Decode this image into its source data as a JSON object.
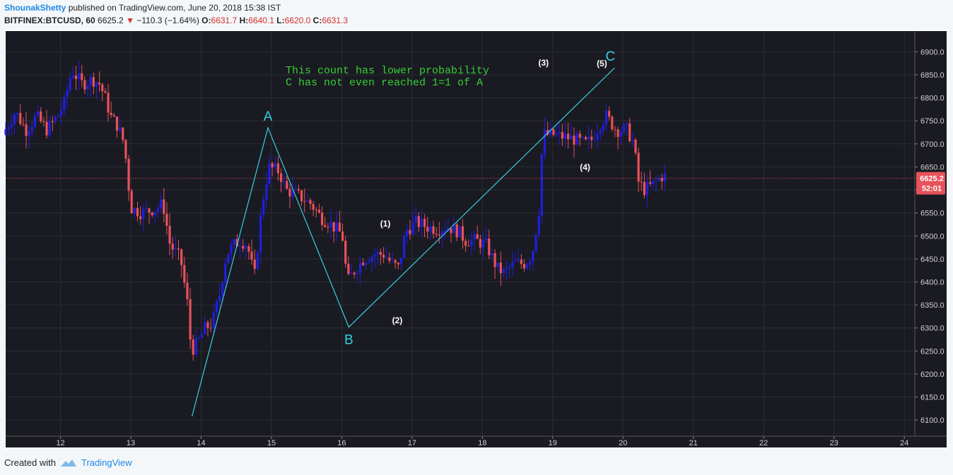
{
  "header": {
    "author": "ShounakShetty",
    "published": " published on TradingView.com, June 20, 2018 15:38 IST",
    "symbol": "BITFINEX:BTCUSD, 60",
    "last": "6625.2",
    "change": "−110.3 (−1.64%)",
    "o_label": "O:",
    "o_val": "6631.7",
    "h_label": "H:",
    "h_val": "6640.1",
    "l_label": "L:",
    "l_val": "6620.0",
    "c_label": "C:",
    "c_val": "6631.3"
  },
  "footer": {
    "created_with": "Created with",
    "brand": "TradingView"
  },
  "colors": {
    "bg": "#1a1a22",
    "grid": "#2c2c36",
    "up": "#1f1fe0",
    "down": "#e8525a",
    "wave": "#35d0e0",
    "note": "#35d035",
    "price_tag": "#e8525a"
  },
  "chart_data": {
    "type": "candlestick",
    "ylim": [
      6065,
      6945
    ],
    "xlim": [
      11.22,
      24.15
    ],
    "y_ticks": [
      6100,
      6150,
      6200,
      6250,
      6300,
      6350,
      6400,
      6450,
      6500,
      6550,
      6600,
      6650,
      6700,
      6750,
      6800,
      6850,
      6900
    ],
    "y_tick_labels": [
      "6100.0",
      "6150.0",
      "6200.0",
      "6250.0",
      "6300.0",
      "6350.0",
      "6400.0",
      "6450.0",
      "6500.0",
      "6550.0",
      "6600.0",
      "6650.0",
      "6700.0",
      "6750.0",
      "6800.0",
      "6850.0",
      "6900.0"
    ],
    "x_ticks": [
      12,
      13,
      14,
      15,
      16,
      17,
      18,
      19,
      20,
      21,
      22,
      23,
      24
    ],
    "x_tick_labels": [
      "12",
      "13",
      "14",
      "15",
      "16",
      "17",
      "18",
      "19",
      "20",
      "21",
      "22",
      "23",
      "24"
    ],
    "price_path": [
      [
        11.22,
        6720
      ],
      [
        11.4,
        6770
      ],
      [
        11.55,
        6730
      ],
      [
        11.7,
        6760
      ],
      [
        11.85,
        6730
      ],
      [
        12.0,
        6760
      ],
      [
        12.1,
        6790
      ],
      [
        12.2,
        6860
      ],
      [
        12.35,
        6830
      ],
      [
        12.5,
        6840
      ],
      [
        12.6,
        6830
      ],
      [
        12.7,
        6790
      ],
      [
        12.75,
        6760
      ],
      [
        12.85,
        6740
      ],
      [
        12.95,
        6700
      ],
      [
        13.0,
        6620
      ],
      [
        13.05,
        6560
      ],
      [
        13.2,
        6550
      ],
      [
        13.4,
        6560
      ],
      [
        13.5,
        6570
      ],
      [
        13.6,
        6480
      ],
      [
        13.75,
        6450
      ],
      [
        13.85,
        6350
      ],
      [
        13.9,
        6250
      ],
      [
        14.0,
        6270
      ],
      [
        14.1,
        6300
      ],
      [
        14.2,
        6310
      ],
      [
        14.3,
        6370
      ],
      [
        14.4,
        6460
      ],
      [
        14.5,
        6480
      ],
      [
        14.6,
        6490
      ],
      [
        14.7,
        6480
      ],
      [
        14.8,
        6410
      ],
      [
        14.9,
        6560
      ],
      [
        15.0,
        6650
      ],
      [
        15.15,
        6640
      ],
      [
        15.25,
        6600
      ],
      [
        15.4,
        6590
      ],
      [
        15.5,
        6580
      ],
      [
        15.6,
        6570
      ],
      [
        15.75,
        6540
      ],
      [
        15.85,
        6530
      ],
      [
        16.0,
        6510
      ],
      [
        16.05,
        6500
      ],
      [
        16.12,
        6400
      ],
      [
        16.2,
        6420
      ],
      [
        16.35,
        6450
      ],
      [
        16.5,
        6460
      ],
      [
        16.65,
        6460
      ],
      [
        16.75,
        6440
      ],
      [
        16.85,
        6430
      ],
      [
        16.95,
        6510
      ],
      [
        17.1,
        6530
      ],
      [
        17.25,
        6520
      ],
      [
        17.4,
        6515
      ],
      [
        17.55,
        6520
      ],
      [
        17.7,
        6510
      ],
      [
        17.8,
        6490
      ],
      [
        17.95,
        6490
      ],
      [
        18.1,
        6480
      ],
      [
        18.25,
        6430
      ],
      [
        18.35,
        6420
      ],
      [
        18.5,
        6440
      ],
      [
        18.65,
        6440
      ],
      [
        18.75,
        6460
      ],
      [
        18.85,
        6560
      ],
      [
        18.9,
        6720
      ],
      [
        19.05,
        6720
      ],
      [
        19.2,
        6715
      ],
      [
        19.35,
        6710
      ],
      [
        19.5,
        6700
      ],
      [
        19.6,
        6710
      ],
      [
        19.7,
        6740
      ],
      [
        19.8,
        6760
      ],
      [
        19.95,
        6730
      ],
      [
        20.1,
        6730
      ],
      [
        20.2,
        6700
      ],
      [
        20.25,
        6620
      ],
      [
        20.35,
        6600
      ],
      [
        20.45,
        6610
      ],
      [
        20.6,
        6630
      ]
    ],
    "last_price": 6625.2,
    "price_tag": "6625.2",
    "countdown_tag": "52:01",
    "wave_abc": {
      "points": [
        [
          13.87,
          6108
        ],
        [
          14.95,
          6735
        ],
        [
          16.1,
          6302
        ],
        [
          19.88,
          6865
        ]
      ],
      "labels": [
        "A",
        "B",
        "C"
      ]
    },
    "wave_labels": [
      {
        "text": "(1)",
        "x": 16.62,
        "y": 6520
      },
      {
        "text": "(2)",
        "x": 16.79,
        "y": 6310
      },
      {
        "text": "(3)",
        "x": 18.87,
        "y": 6870
      },
      {
        "text": "(4)",
        "x": 19.46,
        "y": 6643
      },
      {
        "text": "(5)",
        "x": 19.7,
        "y": 6868
      }
    ],
    "annotation": [
      "This count has lower probability",
      "C has not even reached 1=1 of A"
    ]
  }
}
